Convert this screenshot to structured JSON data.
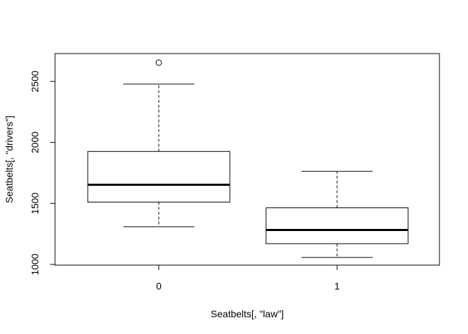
{
  "chart_data": {
    "type": "box",
    "title": "",
    "xlabel": "Seatbelts[, \"law\"]",
    "ylabel": "Seatbelts[, \"drivers\"]",
    "categories": [
      "0",
      "1"
    ],
    "ylim": [
      1000,
      2700
    ],
    "yticks": [
      1000,
      1500,
      2000,
      2500
    ],
    "grid": false,
    "boxes": [
      {
        "category": "0",
        "whisker_low": 1309,
        "q1": 1511,
        "median": 1653,
        "q3": 1926,
        "whisker_high": 2478,
        "outliers": [
          2654
        ]
      },
      {
        "category": "1",
        "whisker_low": 1057,
        "q1": 1170,
        "median": 1282,
        "q3": 1464,
        "whisker_high": 1763,
        "outliers": []
      }
    ],
    "colors": {
      "stroke": "#000000",
      "background": "#ffffff"
    }
  }
}
